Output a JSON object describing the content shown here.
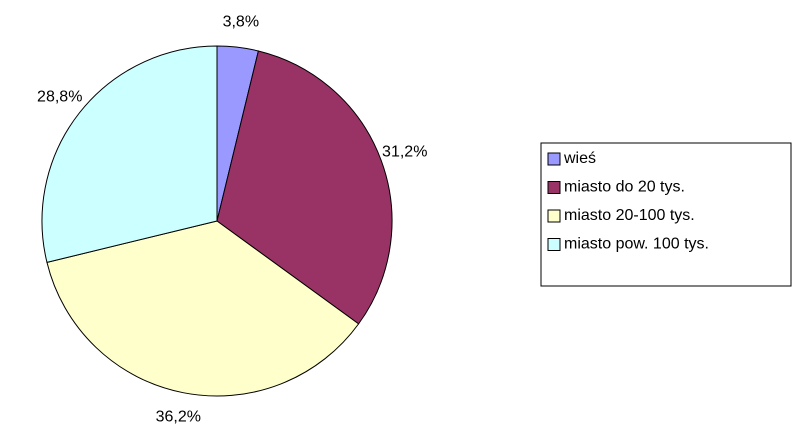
{
  "chart_data": {
    "type": "pie",
    "categories": [
      "wieś",
      "miasto do 20 tys.",
      "miasto 20-100 tys.",
      "miasto pow. 100 tys."
    ],
    "values": [
      3.8,
      31.2,
      36.2,
      28.8
    ],
    "value_labels": [
      "3,8%",
      "31,2%",
      "36,2%",
      "28,8%"
    ],
    "colors": [
      "#9999ff",
      "#993366",
      "#ffffcc",
      "#ccffff"
    ],
    "legend": "right"
  }
}
